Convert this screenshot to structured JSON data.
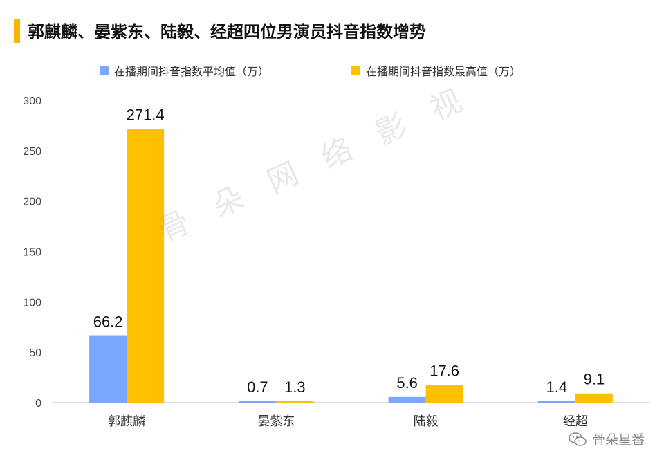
{
  "header": {
    "title": "郭麒麟、晏紫东、陆毅、经超四位男演员抖音指数增势"
  },
  "watermark": "骨朵网络影视",
  "brand": {
    "text": "骨朵星番",
    "icon": "wechat-icon"
  },
  "colors": {
    "accent": "#f5b800",
    "avg": "#7aa7ff",
    "max": "#ffc000"
  },
  "chart_data": {
    "type": "bar",
    "categories": [
      "郭麒麟",
      "晏紫东",
      "陆毅",
      "经超"
    ],
    "series": [
      {
        "name": "在播期间抖音指数平均值（万）",
        "values": [
          66.2,
          0.7,
          5.6,
          1.4
        ],
        "labels": [
          "66.2",
          "0.7",
          "5.6",
          "1.4"
        ]
      },
      {
        "name": "在播期间抖音指数最高值（万）",
        "values": [
          271.4,
          1.3,
          17.6,
          9.1
        ],
        "labels": [
          "271.4",
          "1.3",
          "17.6",
          "9.1"
        ]
      }
    ],
    "ylim": [
      0,
      300
    ],
    "yticks": [
      "0",
      "50",
      "100",
      "150",
      "200",
      "250",
      "300"
    ],
    "grid": false,
    "legend": "top"
  }
}
